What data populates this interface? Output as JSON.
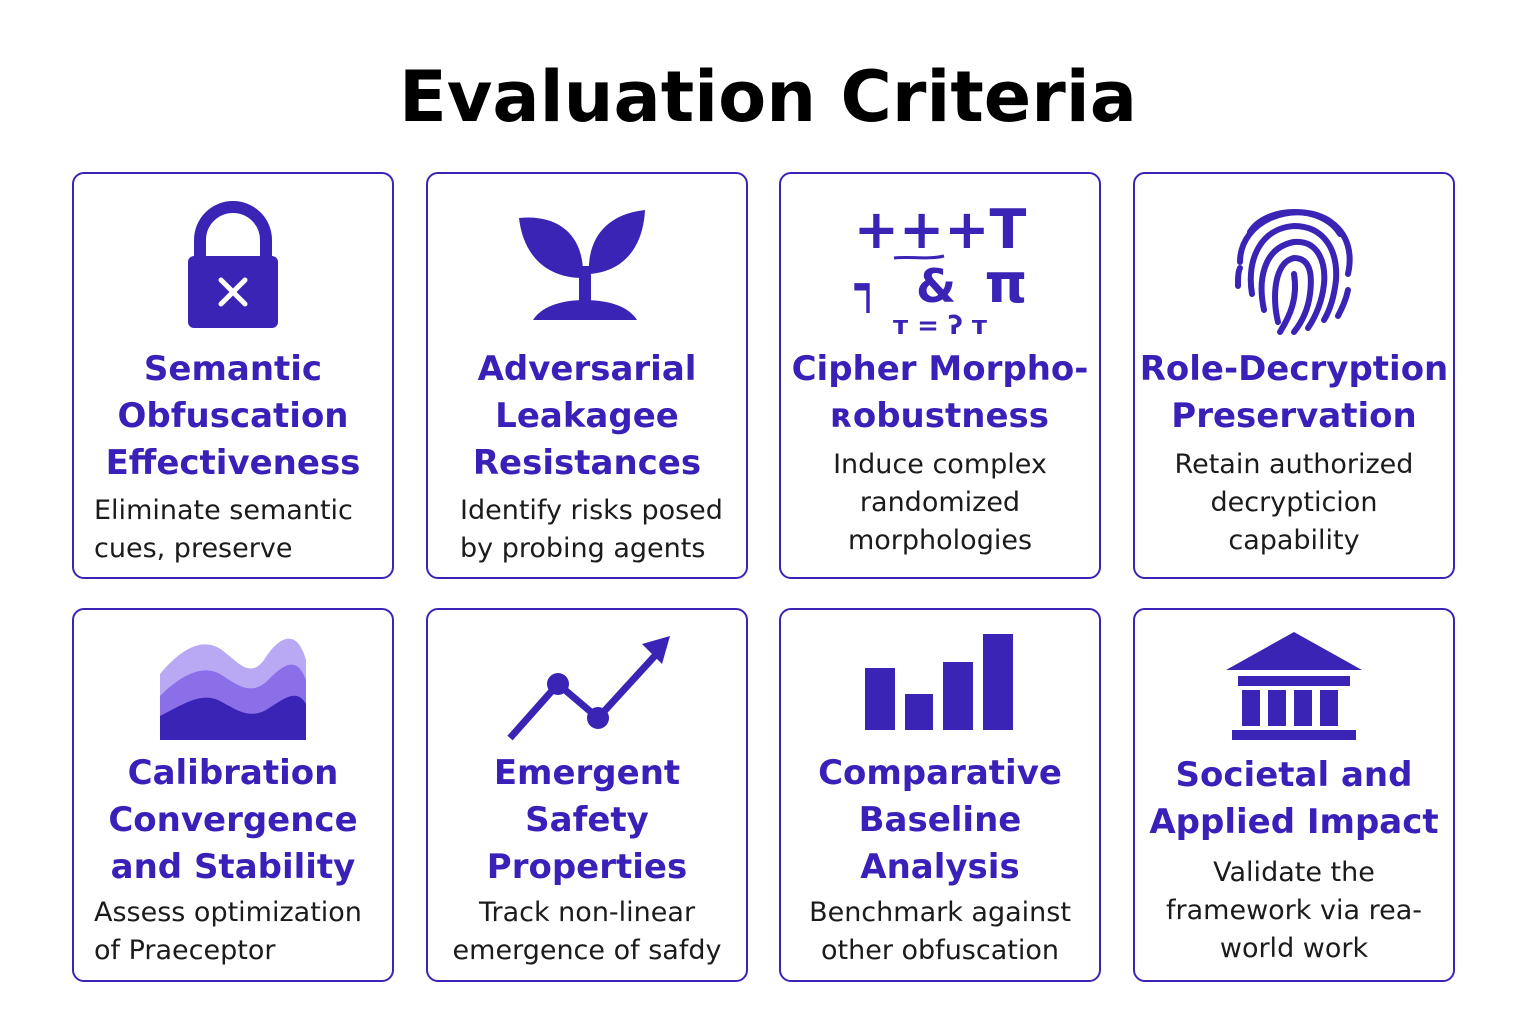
{
  "title": "Evaluation Criteria",
  "colors": {
    "accent": "#3a24b6",
    "accent_light": "#b9a9f5",
    "accent_mid": "#8a6fe8",
    "text": "#1b1b1b"
  },
  "cards": [
    {
      "icon": "lock-icon",
      "title": "Semantic\nObfuscation\nEffectiveness",
      "description": "Eliminate semantic\ncues, preserve"
    },
    {
      "icon": "sprout-icon",
      "title": "Adversarial\nLeakagee\nResistances",
      "description": "Identify risks posed\nby probing agents"
    },
    {
      "icon": "cipher-symbols-icon",
      "title": "Cipher Morpho-\nʀobustness",
      "description": "Induce complex\nrandomized\nmorphologies",
      "symbols": {
        "row1": "+++T",
        "row2_left": "┑",
        "row2_mid": "&",
        "row2_right": "π",
        "row3": "ᴛ = ʔ ᴛ"
      }
    },
    {
      "icon": "fingerprint-icon",
      "title": "Role-Decryption\nPreservation",
      "description": "Retain authorized\ndecrypticion\ncapability"
    },
    {
      "icon": "area-chart-icon",
      "title": "Calibration\nConvergence\nand Stability",
      "description": "Assess optimization\nof Praeceptor"
    },
    {
      "icon": "trend-arrow-icon",
      "title": "Emergent\nSafety\nProperties",
      "description": "Track non-linear\nemergence of safdy"
    },
    {
      "icon": "bar-chart-icon",
      "title": "Comparative\nBaseline\nAnalysis",
      "description": "Benchmark against\nother obfuscation"
    },
    {
      "icon": "institution-icon",
      "title": "Societal and\nApplied Impact",
      "description": "Validate the\nframework via rea-\nworld work"
    }
  ]
}
